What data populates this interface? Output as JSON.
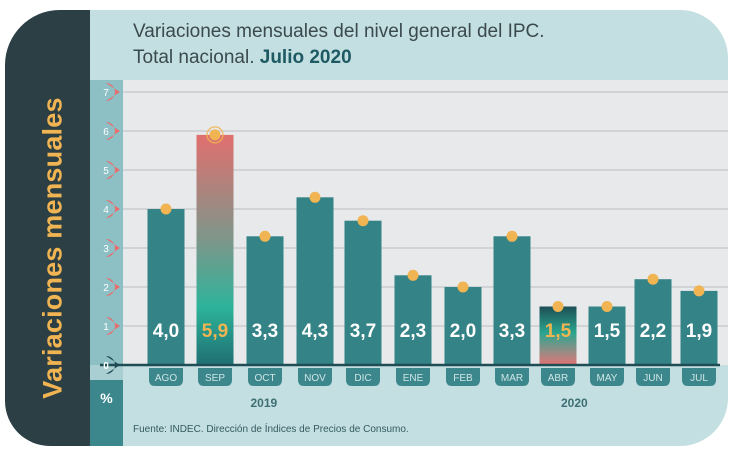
{
  "title": {
    "line1": "Variaciones mensuales del nivel general del IPC.",
    "line2_prefix": "Total nacional. ",
    "line2_emphasis": "Julio 2020"
  },
  "side_title": "Variaciones mensuales",
  "unit_label": "%",
  "source": "Fuente: INDEC. Dirección de Índices de Precios de Consumo.",
  "colors": {
    "bar": "#348387",
    "highlight_label": "#f0b452",
    "dot": "#f0b452",
    "tick_marker": "#e86d6f",
    "zero_marker": "#1d4a52",
    "gradient_top_sep": "#e06f6e",
    "gradient_bottom_sep": "#2db39a"
  },
  "chart_data": {
    "type": "bar",
    "title": "Variaciones mensuales del nivel general del IPC. Total nacional. Julio 2020",
    "xlabel": "",
    "ylabel": "Variaciones mensuales (%)",
    "ylim": [
      0,
      7
    ],
    "yticks": [
      "0",
      "1",
      "2",
      "3",
      "4",
      "5",
      "6",
      "7"
    ],
    "grid": true,
    "categories": [
      "AGO",
      "SEP",
      "OCT",
      "NOV",
      "DIC",
      "ENE",
      "FEB",
      "MAR",
      "ABR",
      "MAY",
      "JUN",
      "JUL"
    ],
    "values": [
      4.0,
      5.9,
      3.3,
      4.3,
      3.7,
      2.3,
      2.0,
      3.3,
      1.5,
      1.5,
      2.2,
      1.9
    ],
    "value_labels": [
      "4,0",
      "5,9",
      "3,3",
      "4,3",
      "3,7",
      "2,3",
      "2,0",
      "3,3",
      "1,5",
      "1,5",
      "2,2",
      "1,9"
    ],
    "highlighted": [
      "SEP",
      "ABR"
    ],
    "year_groups": [
      {
        "label": "2019",
        "categories": [
          "AGO",
          "SEP",
          "OCT",
          "NOV",
          "DIC"
        ]
      },
      {
        "label": "2020",
        "categories": [
          "ENE",
          "FEB",
          "MAR",
          "ABR",
          "MAY",
          "JUN",
          "JUL"
        ]
      }
    ]
  }
}
